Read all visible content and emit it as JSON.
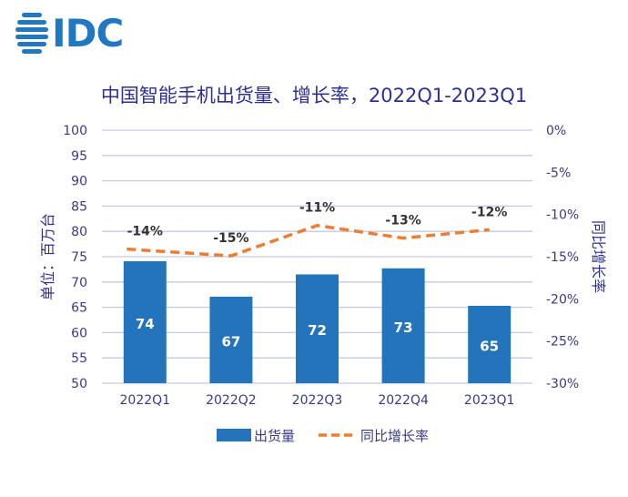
{
  "logo": {
    "text": "IDC",
    "color": "#1f78c1"
  },
  "chart_data": {
    "type": "bar+line",
    "title": "中国智能手机出货量、增长率，2022Q1-2023Q1",
    "categories": [
      "2022Q1",
      "2022Q2",
      "2022Q3",
      "2022Q4",
      "2023Q1"
    ],
    "series": [
      {
        "name": "出货量",
        "type": "bar",
        "axis": "left",
        "color": "#2474bb",
        "values": [
          74.1,
          67.1,
          71.5,
          72.7,
          65.3
        ],
        "labels": [
          "74",
          "67",
          "72",
          "73",
          "65"
        ]
      },
      {
        "name": "同比增长率",
        "type": "line",
        "style": "dashed",
        "axis": "right",
        "color": "#ed7d31",
        "values": [
          -14.1,
          -14.9,
          -11.3,
          -12.8,
          -11.8
        ],
        "labels": [
          "-14%",
          "-15%",
          "-11%",
          "-13%",
          "-12%"
        ]
      }
    ],
    "ylabel": "单位：百万台",
    "ylim": [
      50,
      100
    ],
    "yticks": [
      "100",
      "95",
      "90",
      "85",
      "80",
      "75",
      "70",
      "65",
      "60",
      "55",
      "50"
    ],
    "y2label": "同比增长率",
    "y2lim": [
      -30,
      0
    ],
    "y2ticks": [
      "0%",
      "-5%",
      "-10%",
      "-15%",
      "-20%",
      "-25%",
      "-30%"
    ],
    "grid": true,
    "legend": "bottom",
    "colors": {
      "text": "#3a3a8c",
      "grid": "#c7c7ec",
      "title": "#2e3192"
    }
  }
}
